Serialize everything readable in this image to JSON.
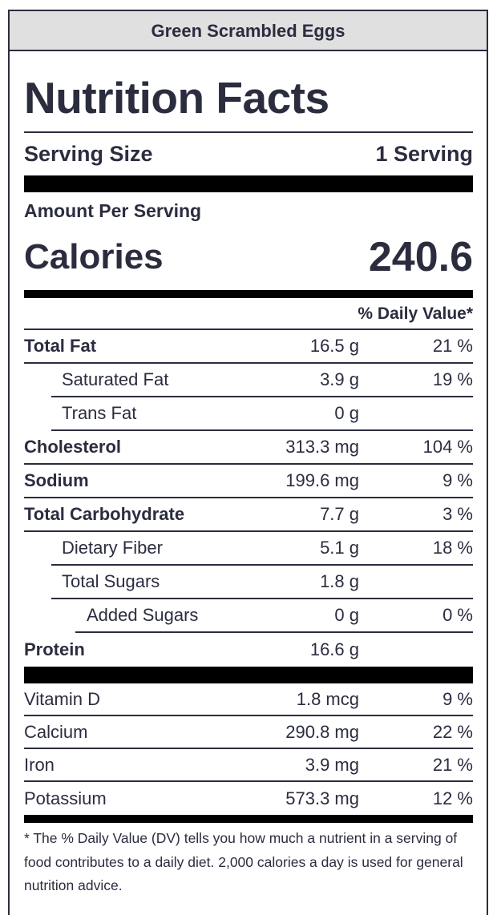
{
  "recipe_title": "Green Scrambled Eggs",
  "title": "Nutrition Facts",
  "serving": {
    "label": "Serving Size",
    "value": "1 Serving"
  },
  "amount_per_serving": "Amount Per Serving",
  "calories": {
    "label": "Calories",
    "value": "240.6"
  },
  "daily_value_header": "% Daily Value*",
  "nutrients": [
    {
      "name": "Total Fat",
      "amount": "16.5 g",
      "dv": "21 %"
    },
    {
      "name": "Saturated Fat",
      "amount": "3.9 g",
      "dv": "19 %"
    },
    {
      "name": "Trans Fat",
      "amount": "0 g",
      "dv": ""
    },
    {
      "name": "Cholesterol",
      "amount": "313.3 mg",
      "dv": "104 %"
    },
    {
      "name": "Sodium",
      "amount": "199.6 mg",
      "dv": "9 %"
    },
    {
      "name": "Total Carbohydrate",
      "amount": "7.7 g",
      "dv": "3 %"
    },
    {
      "name": "Dietary Fiber",
      "amount": "5.1 g",
      "dv": "18 %"
    },
    {
      "name": "Total Sugars",
      "amount": "1.8 g",
      "dv": ""
    },
    {
      "name": "Added Sugars",
      "amount": "0 g",
      "dv": "0 %"
    },
    {
      "name": "Protein",
      "amount": "16.6 g",
      "dv": ""
    }
  ],
  "vitamins": [
    {
      "name": "Vitamin D",
      "amount": "1.8 mcg",
      "dv": "9 %"
    },
    {
      "name": "Calcium",
      "amount": "290.8 mg",
      "dv": "22 %"
    },
    {
      "name": "Iron",
      "amount": "3.9 mg",
      "dv": "21 %"
    },
    {
      "name": "Potassium",
      "amount": "573.3 mg",
      "dv": "12 %"
    }
  ],
  "footnote": "* The % Daily Value (DV) tells you how much a nutrient in a serving of food contributes to a daily diet. 2,000 calories a day is used for general nutrition advice."
}
